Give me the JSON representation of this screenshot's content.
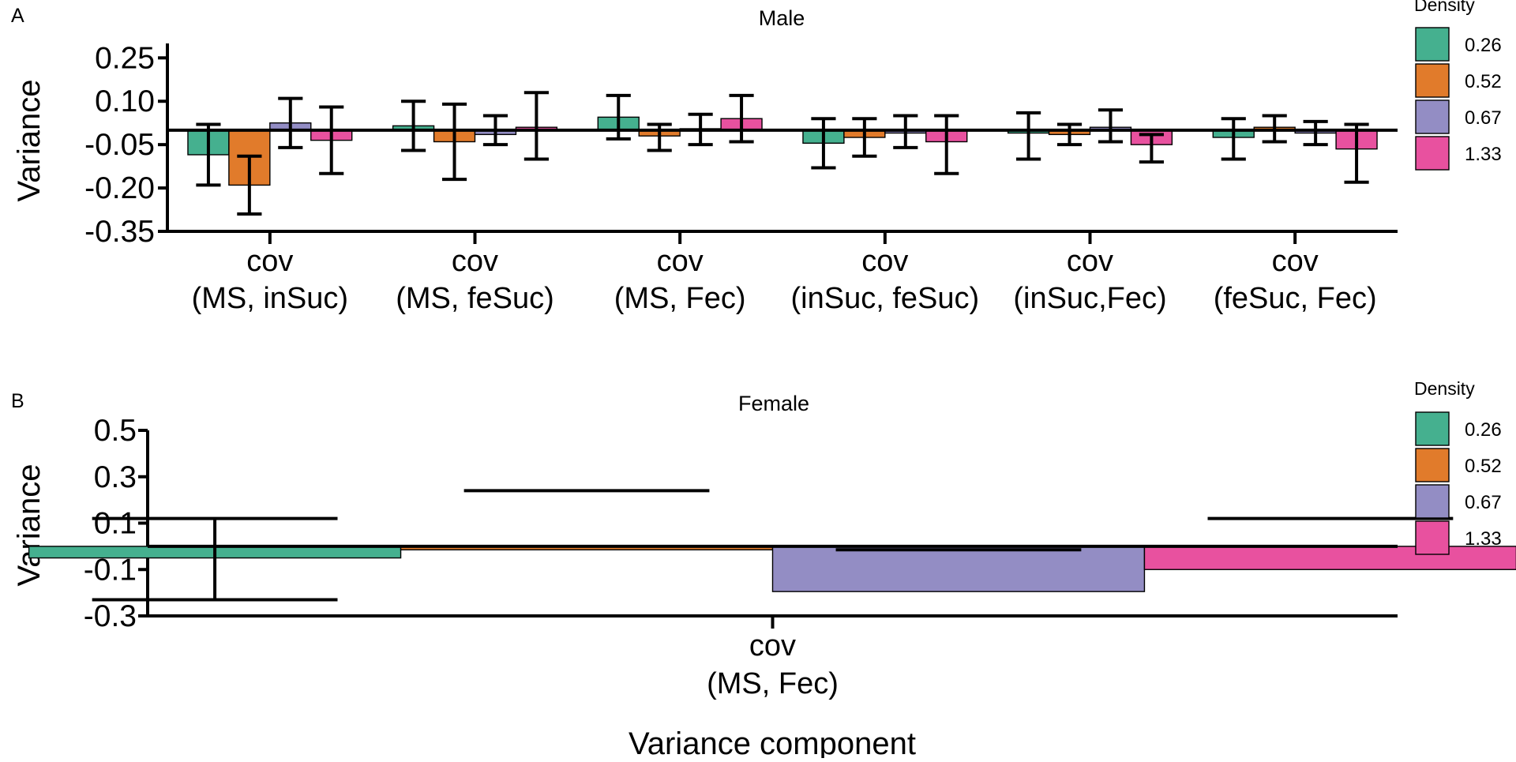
{
  "colors": {
    "0.26": "#45B08F",
    "0.52": "#E17B2B",
    "0.67": "#938DC4",
    "1.33": "#E8519F"
  },
  "chart_data": [
    {
      "type": "bar",
      "panel": "A",
      "title": "Male",
      "xlabel": "",
      "ylabel": "Variance",
      "ylim": [
        -0.35,
        0.3
      ],
      "yticks": [
        "0.25",
        "0.10",
        "-0.05",
        "-0.20",
        "-0.35"
      ],
      "ytick_values": [
        0.25,
        0.1,
        -0.05,
        -0.2,
        -0.35
      ],
      "categories": [
        [
          "cov",
          "(MS, inSuc)"
        ],
        [
          "cov",
          "(MS, feSuc)"
        ],
        [
          "cov",
          "(MS, Fec)"
        ],
        [
          "cov",
          "(inSuc, feSuc)"
        ],
        [
          "cov",
          "(inSuc,Fec)"
        ],
        [
          "cov",
          "(feSuc, Fec)"
        ]
      ],
      "legend": {
        "title": "Density",
        "entries": [
          "0.26",
          "0.52",
          "0.67",
          "1.33"
        ],
        "placement": "right"
      },
      "series": [
        {
          "name": "0.26",
          "values": [
            -0.085,
            0.015,
            0.045,
            -0.045,
            -0.01,
            -0.025
          ],
          "err_low": [
            -0.19,
            -0.07,
            -0.03,
            -0.13,
            -0.1,
            -0.1
          ],
          "err_high": [
            0.02,
            0.1,
            0.12,
            0.04,
            0.06,
            0.04
          ]
        },
        {
          "name": "0.52",
          "values": [
            -0.19,
            -0.04,
            -0.02,
            -0.025,
            -0.015,
            0.01
          ],
          "err_low": [
            -0.29,
            -0.17,
            -0.07,
            -0.09,
            -0.05,
            -0.04
          ],
          "err_high": [
            -0.09,
            0.09,
            0.02,
            0.04,
            0.02,
            0.05
          ]
        },
        {
          "name": "0.67",
          "values": [
            0.025,
            -0.015,
            0.005,
            -0.01,
            0.01,
            -0.01
          ],
          "err_low": [
            -0.06,
            -0.05,
            -0.05,
            -0.06,
            -0.04,
            -0.05
          ],
          "err_high": [
            0.11,
            0.05,
            0.055,
            0.05,
            0.07,
            0.03
          ]
        },
        {
          "name": "1.33",
          "values": [
            -0.035,
            0.01,
            0.04,
            -0.04,
            -0.05,
            -0.065
          ],
          "err_low": [
            -0.15,
            -0.1,
            -0.04,
            -0.15,
            -0.11,
            -0.18
          ],
          "err_high": [
            0.08,
            0.13,
            0.12,
            0.05,
            -0.015,
            0.02
          ]
        }
      ]
    },
    {
      "type": "bar",
      "panel": "B",
      "title": "Female",
      "xlabel": "Variance component",
      "ylabel": "Variance",
      "ylim": [
        -0.3,
        0.5
      ],
      "yticks": [
        "0.5",
        "0.3",
        "0.1",
        "-0.1",
        "-0.3"
      ],
      "ytick_values": [
        0.5,
        0.3,
        0.1,
        -0.1,
        -0.3
      ],
      "categories": [
        [
          "cov",
          "(MS, Fec)"
        ]
      ],
      "legend": {
        "title": "Density",
        "entries": [
          "0.26",
          "0.52",
          "0.67",
          "1.33"
        ],
        "placement": "right"
      },
      "series": [
        {
          "name": "0.26",
          "values": [
            -0.05
          ],
          "err_low": [
            -0.23
          ],
          "err_high": [
            0.12
          ]
        },
        {
          "name": "0.52",
          "values": [
            -0.015
          ],
          "err_low": [
            0.24
          ],
          "err_high": [
            0.24
          ]
        },
        {
          "name": "0.67",
          "values": [
            -0.195
          ],
          "err_low": [
            -0.015
          ],
          "err_high": [
            -0.015
          ]
        },
        {
          "name": "1.33",
          "values": [
            -0.1
          ],
          "err_low": [
            0.12
          ],
          "err_high": [
            0.12
          ]
        }
      ]
    }
  ]
}
